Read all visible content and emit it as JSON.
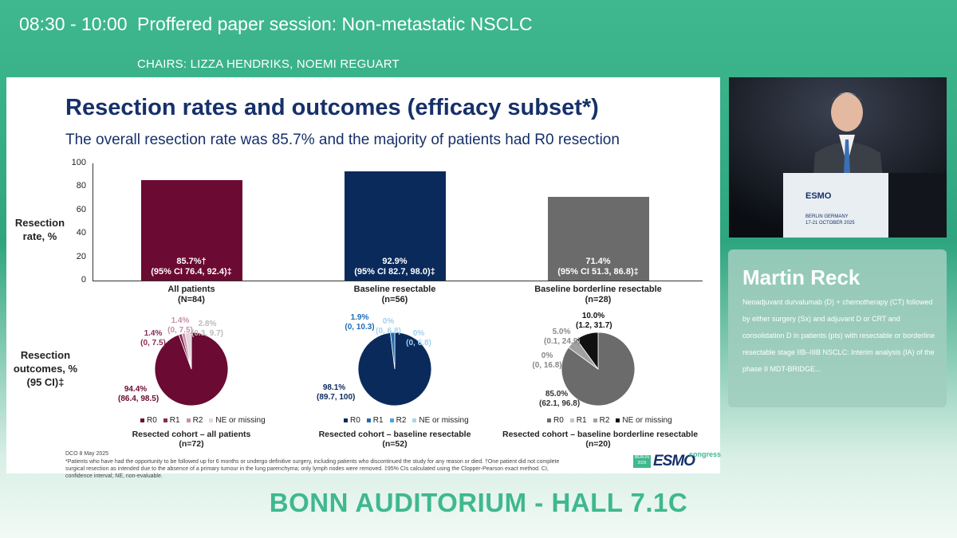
{
  "header": {
    "time": "08:30 - 10:00",
    "session": "Proffered paper session: Non-metastatic NSCLC",
    "chairs": "CHAIRS: LIZZA HENDRIKS, NOEMI REGUART"
  },
  "slide": {
    "title": "Resection rates and outcomes (efficacy subset*)",
    "subtitle": "The overall resection rate was 85.7% and the majority of patients had R0 resection",
    "dco": "DCO 8 May 2025",
    "footnote": "*Patients who have had the opportunity to be followed up for 6 months or undergo definitive surgery, including patients who discontinued the study for any reason or died. †One patient did not complete surgical resection as intended due to the absence of a primary tumour in the lung parenchyma; only lymph nodes were removed. ‡95% CIs calculated using the Clopper-Pearson exact method. CI, confidence interval; NE, non-evaluable.",
    "logo_text": "ESMO",
    "logo_box": "BERLIN 2025",
    "logo_congress": "congress"
  },
  "chart_data": [
    {
      "type": "bar",
      "ylabel": "Resection rate, %",
      "ylim": [
        0,
        100
      ],
      "yticks": [
        "0",
        "20",
        "40",
        "60",
        "80",
        "100"
      ],
      "categories": [
        "All patients",
        "Baseline resectable",
        "Baseline borderline resectable"
      ],
      "category_n": [
        "(N=84)",
        "(n=56)",
        "(n=28)"
      ],
      "values": [
        85.7,
        92.9,
        71.4
      ],
      "value_labels": [
        "85.7%†",
        "92.9%",
        "71.4%"
      ],
      "ci_labels": [
        "(95% CI 76.4, 92.4)‡",
        "(95% CI 82.7, 98.0)‡",
        "(95% CI 51.3, 86.8)‡"
      ],
      "colors": [
        "#6b0a32",
        "#0b2a5c",
        "#6b6b6b"
      ]
    },
    {
      "type": "pie",
      "ylabel": "Resection outcomes, % (95 CI)‡",
      "legend": [
        "R0",
        "R1",
        "R2",
        "NE or missing"
      ],
      "pies": [
        {
          "cohort": "Resected cohort – all patients",
          "n": "(n=72)",
          "values": [
            94.4,
            1.4,
            1.4,
            2.8
          ],
          "labels": [
            "94.4%",
            "1.4%",
            "1.4%",
            "2.8%"
          ],
          "cis": [
            "(86.4, 98.5)",
            "(0, 7.5)",
            "(0, 7.5)",
            "(0.3, 9.7)"
          ],
          "colors": [
            "#6b0a32",
            "#8b2a52",
            "#c990a8",
            "#e6d4dc"
          ]
        },
        {
          "cohort": "Resected cohort – baseline resectable",
          "n": "(n=52)",
          "values": [
            98.1,
            1.9,
            0,
            0
          ],
          "labels": [
            "98.1%",
            "1.9%",
            "0%",
            "0%"
          ],
          "cis": [
            "(89.7, 100)",
            "(0, 10.3)",
            "(0, 6.8)",
            "(0, 6.8)"
          ],
          "colors": [
            "#0b2a5c",
            "#1f6cb5",
            "#4aa3df",
            "#a9d6f2"
          ]
        },
        {
          "cohort": "Resected cohort – baseline borderline resectable",
          "n": "(n=20)",
          "values": [
            85.0,
            0,
            5.0,
            10.0
          ],
          "labels": [
            "85.0%",
            "0%",
            "5.0%",
            "10.0%"
          ],
          "cis": [
            "(62.1, 96.8)",
            "(0, 16.8)",
            "(0.1, 24.9)",
            "(1.2, 31.7)"
          ],
          "colors": [
            "#6b6b6b",
            "#c4c4c4",
            "#a0a0a0",
            "#111111"
          ]
        }
      ]
    }
  ],
  "video": {
    "podium_brand": "ESMO",
    "podium_city": "BERLIN GERMANY",
    "podium_dates": "17-21 OCTOBER 2025"
  },
  "speaker": {
    "name": "Martin Reck",
    "description": "Neoadjuvant durvalumab (D) + chemotherapy (CT) followed by either surgery (Sx) and adjuvant D or CRT and consolidation D in patients (pts) with resectable or borderline resectable stage IIB–IIIB NSCLC: Interim analysis (IA) of the phase II MDT-BRIDGE..."
  },
  "venue": "BONN AUDITORIUM - HALL 7.1C"
}
